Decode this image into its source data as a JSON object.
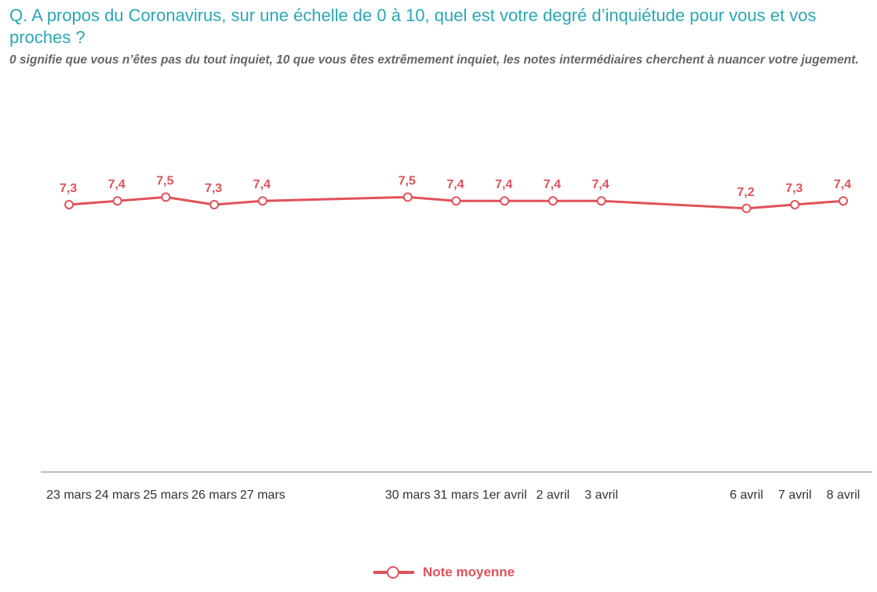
{
  "header": {
    "title": "Q. A propos du Coronavirus, sur une échelle de 0 à 10, quel est votre degré d’inquiétude pour vous et vos proches ?",
    "subtitle": "0 signifie que vous n’êtes pas du tout inquiet, 10 que vous êtes extrêmement inquiet, les notes intermédiaires cherchent à nuancer votre jugement."
  },
  "colors": {
    "title": "#2aa7b5",
    "series": "#e0525a",
    "axis": "#bdbdbd"
  },
  "chart_data": {
    "type": "line",
    "title": "Q. A propos du Coronavirus, sur une échelle de 0 à 10, quel est votre degré d’inquiétude pour vous et vos proches ?",
    "xlabel": "",
    "ylabel": "",
    "x_axis": "date",
    "categories": [
      "23 mars",
      "24 mars",
      "25 mars",
      "26 mars",
      "27 mars",
      "30 mars",
      "31 mars",
      "1er avril",
      "2 avril",
      "3 avril",
      "6 avril",
      "7 avril",
      "8 avril"
    ],
    "series": [
      {
        "name": "Note moyenne",
        "values": [
          7.3,
          7.4,
          7.5,
          7.3,
          7.4,
          7.5,
          7.4,
          7.4,
          7.4,
          7.4,
          7.2,
          7.3,
          7.4
        ],
        "labels": [
          "7,3",
          "7,4",
          "7,5",
          "7,3",
          "7,4",
          "7,5",
          "7,4",
          "7,4",
          "7,4",
          "7,4",
          "7,2",
          "7,3",
          "7,4"
        ]
      }
    ],
    "ylim": [
      0,
      10
    ],
    "grid": false,
    "legend": "bottom"
  }
}
